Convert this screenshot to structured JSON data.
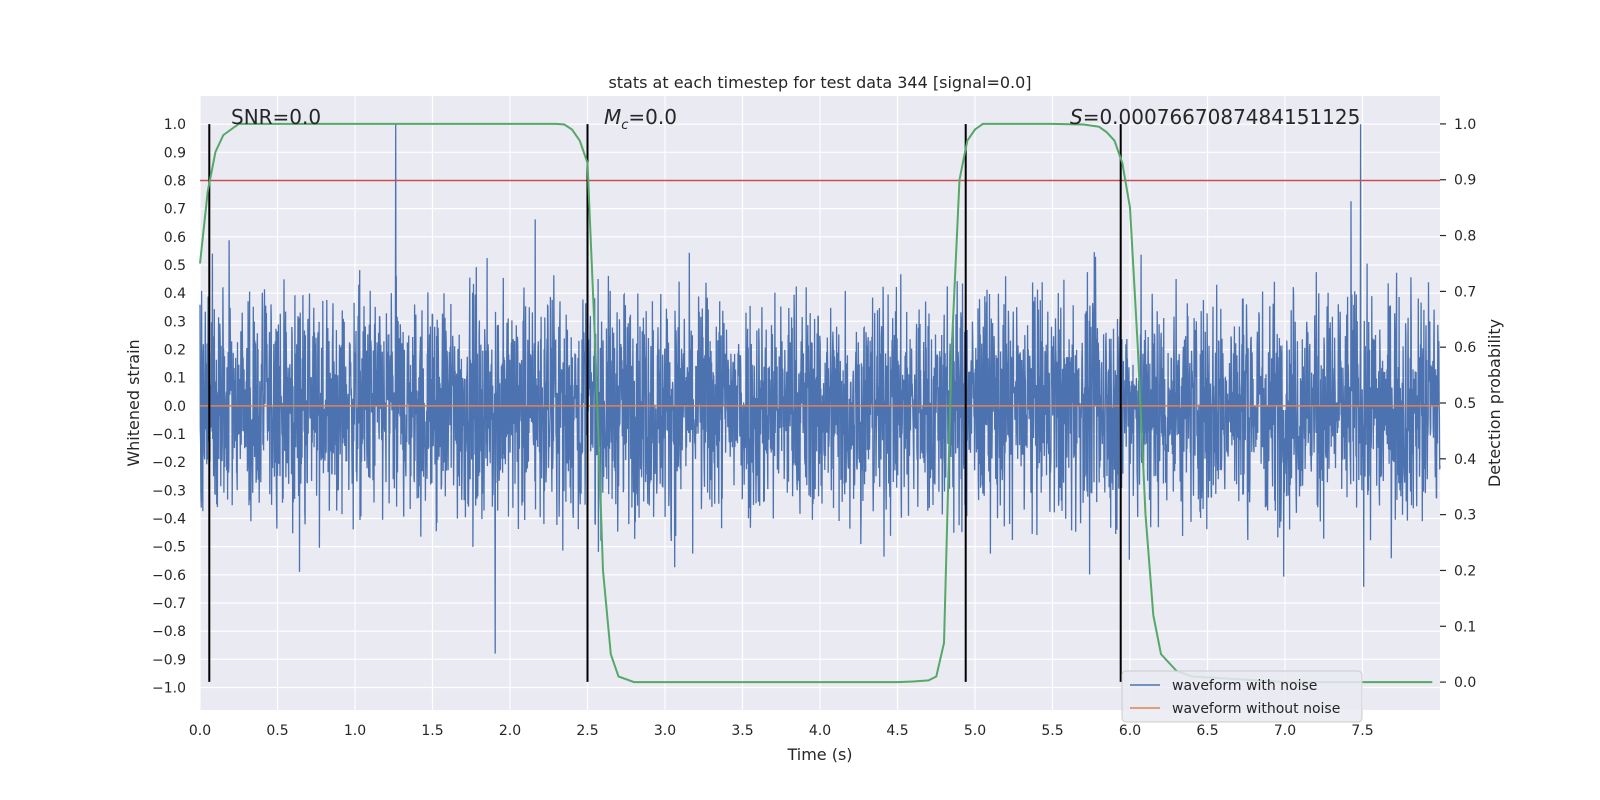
{
  "chart_data": {
    "type": "line",
    "title": "stats at each timestep for test data 344 [signal=0.0]",
    "xlabel": "Time (s)",
    "ylabel": "Whitened strain",
    "y2label": "Detection probability",
    "xlim": [
      0.0,
      8.0
    ],
    "ylim": [
      -1.08,
      1.1
    ],
    "y2lim": [
      -0.05,
      1.05
    ],
    "x_ticks": [
      "0.0",
      "0.5",
      "1.0",
      "1.5",
      "2.0",
      "2.5",
      "3.0",
      "3.5",
      "4.0",
      "4.5",
      "5.0",
      "5.5",
      "6.0",
      "6.5",
      "7.0",
      "7.5"
    ],
    "y_ticks": [
      "1.0",
      "0.9",
      "0.8",
      "0.7",
      "0.6",
      "0.5",
      "0.4",
      "0.3",
      "0.2",
      "0.1",
      "0.0",
      "−0.1",
      "−0.2",
      "−0.3",
      "−0.4",
      "−0.5",
      "−0.6",
      "−0.7",
      "−0.8",
      "−0.9",
      "−1.0"
    ],
    "y2_ticks": [
      "1.0",
      "0.9",
      "0.8",
      "0.7",
      "0.6",
      "0.5",
      "0.4",
      "0.3",
      "0.2",
      "0.1",
      "0.0"
    ],
    "annotations": {
      "snr": "SNR=0.0",
      "mc_symbol": "M",
      "mc_sub": "c",
      "mc_value": "=0.0",
      "s_symbol": "S",
      "s_value": "=0.0007667087484151125"
    },
    "threshold": 0.8,
    "vertical_lines": [
      0.06,
      2.5,
      4.94,
      5.94
    ],
    "series": [
      {
        "name": "waveform with noise",
        "color": "#4c72b0",
        "note": "dense noise, approx range -1.0..1.0"
      },
      {
        "name": "waveform without noise",
        "color": "#dd8452",
        "constant": 0.0
      },
      {
        "color": "#55a868",
        "axis": "right",
        "x": [
          0.0,
          0.05,
          0.1,
          0.15,
          0.2,
          0.25,
          0.3,
          0.35,
          0.4,
          0.6,
          0.8,
          1.0,
          1.5,
          2.0,
          2.2,
          2.3,
          2.35,
          2.4,
          2.45,
          2.5,
          2.55,
          2.6,
          2.65,
          2.7,
          2.8,
          3.0,
          3.5,
          4.0,
          4.5,
          4.6,
          4.7,
          4.75,
          4.8,
          4.85,
          4.9,
          4.95,
          5.0,
          5.05,
          5.1,
          5.2,
          5.5,
          5.7,
          5.8,
          5.85,
          5.9,
          5.95,
          6.0,
          6.05,
          6.1,
          6.15,
          6.2,
          6.3,
          6.4,
          7.0,
          7.5,
          7.95
        ],
        "y": [
          0.75,
          0.88,
          0.95,
          0.98,
          0.99,
          1.0,
          1.0,
          1.0,
          1.0,
          1.0,
          1.0,
          1.0,
          1.0,
          1.0,
          1.0,
          1.0,
          0.999,
          0.99,
          0.97,
          0.93,
          0.6,
          0.2,
          0.05,
          0.01,
          0.0,
          0.0,
          0.0,
          0.0,
          0.0,
          0.001,
          0.003,
          0.01,
          0.07,
          0.6,
          0.9,
          0.97,
          0.99,
          1.0,
          1.0,
          1.0,
          1.0,
          0.999,
          0.995,
          0.985,
          0.97,
          0.93,
          0.85,
          0.6,
          0.3,
          0.12,
          0.05,
          0.02,
          0.01,
          0.0,
          0.0,
          0.0
        ]
      }
    ],
    "right_ticks_value_range": [
      0.0,
      1.0
    ],
    "grid": true,
    "legend_position": "lower-right"
  }
}
